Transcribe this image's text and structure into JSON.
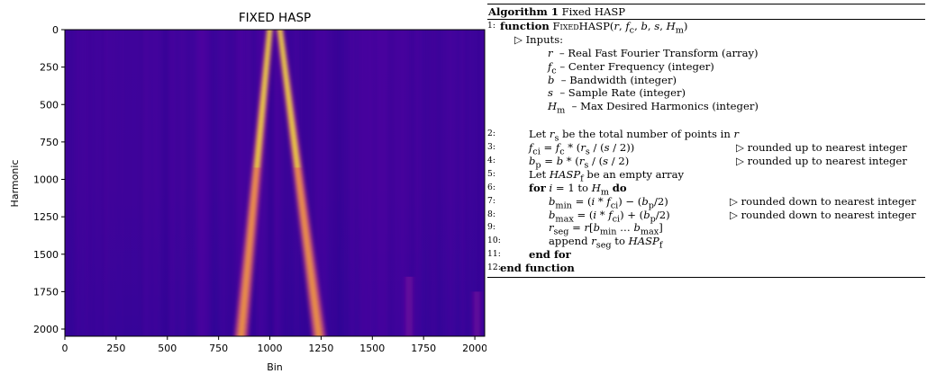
{
  "chart_data": {
    "type": "heatmap",
    "title": "FIXED HASP",
    "xlabel": "Bin",
    "ylabel": "Harmonic",
    "x_ticks": [
      "0",
      "250",
      "500",
      "750",
      "1000",
      "1250",
      "1500",
      "1750",
      "2000"
    ],
    "y_ticks": [
      "0",
      "250",
      "500",
      "750",
      "1000",
      "1250",
      "1500",
      "1750",
      "2000"
    ],
    "xlim": [
      0,
      2048
    ],
    "ylim": [
      2048,
      0
    ],
    "colormap": "plasma",
    "features": [
      {
        "description": "bright V-shaped band",
        "x_start": 860,
        "x_end": 1000,
        "y_start": 2048,
        "y_end": 0
      },
      {
        "description": "bright V-shaped band",
        "x_start": 1240,
        "x_end": 1050,
        "y_start": 2048,
        "y_end": 0
      },
      {
        "description": "faint vertical streak",
        "x": 1680,
        "y_start": 1650,
        "y_end": 2048
      },
      {
        "description": "faint vertical streak",
        "x": 2010,
        "y_start": 1750,
        "y_end": 2048
      }
    ]
  },
  "algorithm": {
    "title_bold": "Algorithm 1",
    "title_rest": " Fixed HASP",
    "lines": [
      {
        "num": "1:",
        "kw": "function",
        "text": " FIXEDHASP(r, f_c, b, s, H_m)"
      },
      {
        "num": "",
        "text": "▷ Inputs:"
      },
      {
        "num": "",
        "text": "r  – Real Fast Fourier Transform (array)"
      },
      {
        "num": "",
        "text": "f_c – Center Frequency (integer)"
      },
      {
        "num": "",
        "text": "b  – Bandwidth (integer)"
      },
      {
        "num": "",
        "text": "s  – Sample Rate (integer)"
      },
      {
        "num": "",
        "text": "H_m  – Max Desired Harmonics (integer)"
      },
      {
        "num": "2:",
        "text": "Let r_s be the total number of points in r"
      },
      {
        "num": "3:",
        "text": "f_ci = f_c * (r_s / (s / 2))",
        "comment": "▷ rounded up to nearest integer"
      },
      {
        "num": "4:",
        "text": "b_p = b * (r_s / (s / 2)",
        "comment": "▷ rounded up to nearest integer"
      },
      {
        "num": "5:",
        "text": "Let HASP_f be an empty array"
      },
      {
        "num": "6:",
        "kw": "for",
        "text": " i = 1 to H_m do"
      },
      {
        "num": "7:",
        "text": "b_min = (i * f_ci) − (b_p/2)",
        "comment": "▷ rounded down to nearest integer"
      },
      {
        "num": "8:",
        "text": "b_max = (i * f_ci) + (b_p/2)",
        "comment": "▷ rounded down to nearest integer"
      },
      {
        "num": "9:",
        "text": "r_seg = r[b_min … b_max]"
      },
      {
        "num": "10:",
        "text": "append r_seg to HASP_f"
      },
      {
        "num": "11:",
        "kw": "end for",
        "text": ""
      },
      {
        "num": "12:",
        "kw": "end function",
        "text": ""
      }
    ]
  }
}
